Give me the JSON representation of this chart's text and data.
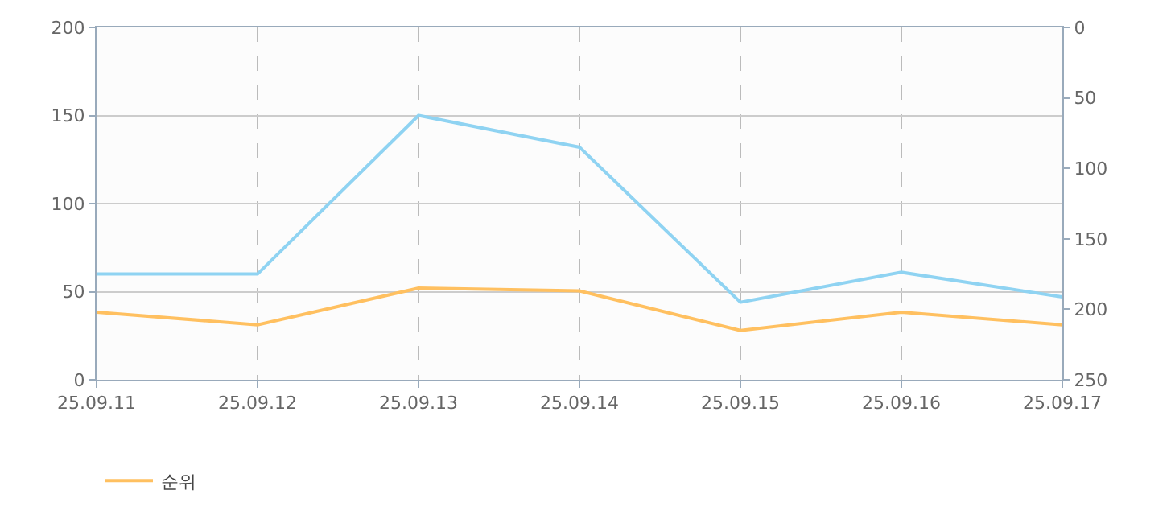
{
  "chart_data": {
    "type": "line",
    "categories": [
      "25.09.11",
      "25.09.12",
      "25.09.13",
      "25.09.14",
      "25.09.15",
      "25.09.16",
      "25.09.17"
    ],
    "series": [
      {
        "color": "#8fd3f2",
        "values": [
          60,
          60,
          150,
          132,
          44,
          61,
          47
        ]
      },
      {
        "name": "순위",
        "color": "#ffc060",
        "axis": "y2",
        "values": [
          202,
          211,
          185,
          187,
          215,
          202,
          211
        ]
      }
    ],
    "ylim": [
      0,
      200
    ],
    "yticks": [
      0,
      50,
      100,
      150,
      200
    ],
    "y2lim": [
      250,
      0
    ],
    "y2ticks": [
      0,
      50,
      100,
      150,
      200,
      250
    ],
    "grid": true,
    "legend": "bottom left",
    "marker": "none",
    "line_style": "solid"
  }
}
